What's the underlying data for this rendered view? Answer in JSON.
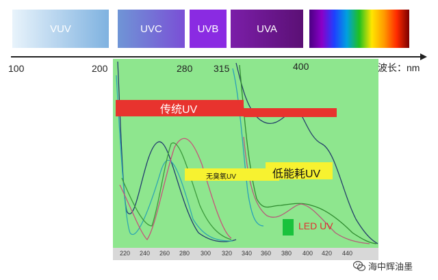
{
  "bands": [
    {
      "name": "VUV"
    },
    {
      "name": "UVC"
    },
    {
      "name": "UVB"
    },
    {
      "name": "UVA"
    },
    {
      "name": ""
    }
  ],
  "axis": {
    "labels": [
      "100",
      "200",
      "280",
      "315",
      "400"
    ],
    "unit": "波长：nm"
  },
  "bottom_ticks": [
    "220",
    "240",
    "260",
    "280",
    "300",
    "320",
    "340",
    "360",
    "380",
    "400",
    "420",
    "440"
  ],
  "labels": {
    "traditional_uv": "传统UV",
    "ozone_free_uv": "无臭氧UV",
    "low_energy_uv": "低能耗UV",
    "led_uv": "LED UV"
  },
  "watermark": "海中辉油墨",
  "colors": {
    "plot_bg": "#8ee68e",
    "red_bar": "#e8332e",
    "yellow_box": "#f7f230",
    "led_green": "#19c23c",
    "led_text": "#e03030"
  },
  "icons": {
    "watermark_icon": "wechat-icon"
  }
}
